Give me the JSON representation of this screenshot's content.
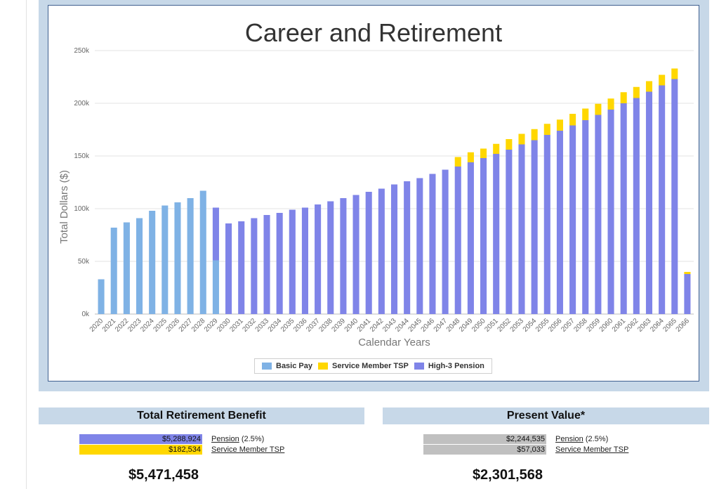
{
  "colors": {
    "basic_pay": "#7fb2e5",
    "tsp": "#ffd700",
    "pension": "#7f84e8",
    "present_value_bar": "#c0c0c0",
    "panel_bg": "#c7d8e8"
  },
  "chart_data": {
    "type": "bar",
    "stacked": true,
    "title": "Career and Retirement",
    "xlabel": "Calendar Years",
    "ylabel": "Total Dollars ($)",
    "ylim": [
      0,
      250000
    ],
    "yticks": [
      0,
      50000,
      100000,
      150000,
      200000,
      250000
    ],
    "ytick_labels": [
      "0k",
      "50k",
      "100k",
      "150k",
      "200k",
      "250k"
    ],
    "grid": true,
    "legend_position": "bottom",
    "categories": [
      "2020",
      "2021",
      "2022",
      "2023",
      "2024",
      "2025",
      "2026",
      "2027",
      "2028",
      "2029",
      "2030",
      "2031",
      "2032",
      "2033",
      "2034",
      "2035",
      "2036",
      "2037",
      "2038",
      "2039",
      "2040",
      "2041",
      "2042",
      "2043",
      "2044",
      "2045",
      "2046",
      "2047",
      "2048",
      "2049",
      "2050",
      "2051",
      "2052",
      "2053",
      "2054",
      "2055",
      "2056",
      "2057",
      "2058",
      "2059",
      "2060",
      "2061",
      "2062",
      "2063",
      "2064",
      "2065",
      "2066"
    ],
    "series": [
      {
        "name": "Basic Pay",
        "values": [
          33000,
          82000,
          87000,
          91000,
          98000,
          103000,
          106000,
          110000,
          117000,
          51000,
          0,
          0,
          0,
          0,
          0,
          0,
          0,
          0,
          0,
          0,
          0,
          0,
          0,
          0,
          0,
          0,
          0,
          0,
          0,
          0,
          0,
          0,
          0,
          0,
          0,
          0,
          0,
          0,
          0,
          0,
          0,
          0,
          0,
          0,
          0,
          0,
          0
        ]
      },
      {
        "name": "High-3 Pension",
        "values": [
          0,
          0,
          0,
          0,
          0,
          0,
          0,
          0,
          0,
          50000,
          86000,
          88000,
          91000,
          94000,
          96000,
          99000,
          101000,
          104000,
          107000,
          110000,
          113000,
          116000,
          119000,
          123000,
          126000,
          129000,
          133000,
          137000,
          140000,
          144000,
          148000,
          152000,
          156000,
          161000,
          165000,
          170000,
          174000,
          179000,
          184000,
          189000,
          194000,
          200000,
          205000,
          211000,
          217000,
          223000,
          38000
        ]
      },
      {
        "name": "Service Member TSP",
        "values": [
          0,
          0,
          0,
          0,
          0,
          0,
          0,
          0,
          0,
          0,
          0,
          0,
          0,
          0,
          0,
          0,
          0,
          0,
          0,
          0,
          0,
          0,
          0,
          0,
          0,
          0,
          0,
          0,
          9000,
          9500,
          9000,
          9500,
          10000,
          10000,
          10500,
          10500,
          10500,
          11000,
          11000,
          10500,
          10500,
          10500,
          10500,
          10000,
          10000,
          10000,
          2000
        ]
      }
    ]
  },
  "legend": {
    "basic_pay": "Basic Pay",
    "tsp": "Service Member TSP",
    "pension": "High-3 Pension"
  },
  "total_benefit": {
    "header": "Total Retirement Benefit",
    "pension_value": "$5,288,924",
    "pension_label": "Pension",
    "pension_rate": "(2.5%)",
    "tsp_value": "$182,534",
    "tsp_label": "Service Member TSP",
    "pension_amount": 5288924,
    "tsp_amount": 182534,
    "total": "$5,471,458"
  },
  "present_value": {
    "header": "Present Value*",
    "pension_value": "$2,244,535",
    "pension_label": "Pension",
    "pension_rate": "(2.5%)",
    "tsp_value": "$57,033",
    "tsp_label": "Service Member TSP",
    "total": "$2,301,568"
  }
}
